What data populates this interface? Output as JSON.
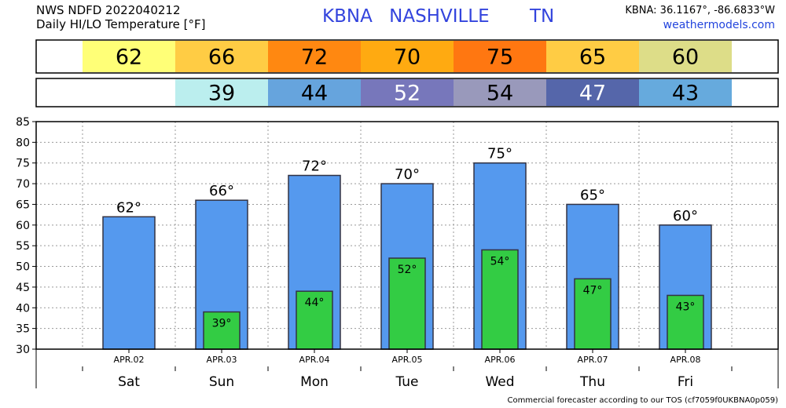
{
  "header": {
    "line1": "NWS NDFD 2022040212",
    "line2": "Daily HI/LO Temperature [°F]",
    "station_id": "KBNA",
    "station_name": "NASHVILLE",
    "state": "TN",
    "coords": "KBNA: 36.1167°, -86.6833°W",
    "site": "weathermodels.com"
  },
  "footer": "Commercial forecaster according to our TOS (cf7059f0UKBNA0p059)",
  "colors": {
    "hi_bar": "#5599ee",
    "lo_bar": "#33cc44",
    "bar_stroke": "#333344"
  },
  "strips": {
    "hi": [
      {
        "label": "62",
        "color": "#ffff77",
        "text_color": "#000000"
      },
      {
        "label": "66",
        "color": "#ffcc44",
        "text_color": "#000000"
      },
      {
        "label": "72",
        "color": "#ff8811",
        "text_color": "#000000"
      },
      {
        "label": "70",
        "color": "#ffaa11",
        "text_color": "#000000"
      },
      {
        "label": "75",
        "color": "#ff7711",
        "text_color": "#000000"
      },
      {
        "label": "65",
        "color": "#ffcc44",
        "text_color": "#000000"
      },
      {
        "label": "60",
        "color": "#dddd88",
        "text_color": "#000000"
      }
    ],
    "lo": [
      {
        "label": "",
        "color": "#ffffff",
        "text_color": "#000000"
      },
      {
        "label": "39",
        "color": "#bbeeee",
        "text_color": "#000000"
      },
      {
        "label": "44",
        "color": "#66a4dd",
        "text_color": "#000000"
      },
      {
        "label": "52",
        "color": "#7777bb",
        "text_color": "#ffffff"
      },
      {
        "label": "54",
        "color": "#9999bb",
        "text_color": "#000000"
      },
      {
        "label": "47",
        "color": "#5566aa",
        "text_color": "#ffffff"
      },
      {
        "label": "43",
        "color": "#66aadd",
        "text_color": "#000000"
      }
    ]
  },
  "chart_data": {
    "type": "bar",
    "categories": [
      "Sat",
      "Sun",
      "Mon",
      "Tue",
      "Wed",
      "Thu",
      "Fri"
    ],
    "dates": [
      "APR.02",
      "APR.03",
      "APR.04",
      "APR.05",
      "APR.06",
      "APR.07",
      "APR.08"
    ],
    "series": [
      {
        "values": [
          62,
          66,
          72,
          70,
          75,
          65,
          60
        ],
        "labels": [
          "62°",
          "66°",
          "72°",
          "70°",
          "75°",
          "65°",
          "60°"
        ]
      },
      {
        "values": [
          null,
          39,
          44,
          52,
          54,
          47,
          43
        ],
        "labels": [
          "",
          "39°",
          "44°",
          "52°",
          "54°",
          "47°",
          "43°"
        ]
      }
    ],
    "yticks": [
      "30",
      "35",
      "40",
      "45",
      "50",
      "55",
      "60",
      "65",
      "70",
      "75",
      "80",
      "85"
    ],
    "ylim": [
      30,
      85
    ],
    "grid": true,
    "title": "",
    "xlabel": "",
    "ylabel": ""
  }
}
